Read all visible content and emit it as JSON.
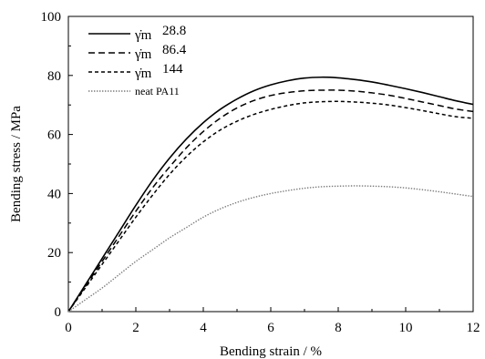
{
  "chart_data": {
    "type": "line",
    "xlabel": "Bending strain / %",
    "ylabel": "Bending stress / MPa",
    "xlim": [
      0,
      12
    ],
    "ylim": [
      0,
      100
    ],
    "x_ticks": [
      0,
      2,
      4,
      6,
      8,
      10,
      12
    ],
    "y_ticks": [
      0,
      20,
      40,
      60,
      80,
      100
    ],
    "grid": false,
    "legend_position": "top-left",
    "series": [
      {
        "name": "γ̇m 28.8",
        "symbol": "γ̇m",
        "value_label": "28.8",
        "color": "#000000",
        "dash": "solid",
        "x": [
          0,
          0.5,
          1,
          1.5,
          2,
          2.5,
          3,
          3.5,
          4,
          4.5,
          5,
          5.5,
          6,
          6.5,
          7,
          7.5,
          8,
          8.5,
          9,
          9.5,
          10,
          10.5,
          11,
          11.5,
          12
        ],
        "y": [
          0,
          9,
          18,
          27,
          36,
          44.5,
          52,
          58.5,
          64,
          68.5,
          72,
          74.8,
          76.8,
          78.2,
          79.1,
          79.4,
          79.2,
          78.6,
          77.8,
          76.7,
          75.5,
          74.2,
          72.8,
          71.4,
          70.2
        ]
      },
      {
        "name": "γ̇m 86.4",
        "symbol": "γ̇m",
        "value_label": "86.4",
        "color": "#000000",
        "dash": "long",
        "x": [
          0,
          0.5,
          1,
          1.5,
          2,
          2.5,
          3,
          3.5,
          4,
          4.5,
          5,
          5.5,
          6,
          6.5,
          7,
          7.5,
          8,
          8.5,
          9,
          9.5,
          10,
          10.5,
          11,
          11.5,
          12
        ],
        "y": [
          0,
          8.5,
          17,
          25.5,
          34,
          42,
          49,
          55.5,
          61,
          65.5,
          69,
          71.5,
          73.2,
          74.2,
          74.8,
          75.0,
          75.0,
          74.7,
          74.1,
          73.3,
          72.2,
          71.0,
          69.8,
          68.6,
          67.8
        ]
      },
      {
        "name": "γ̇m 144",
        "symbol": "γ̇m",
        "value_label": "144",
        "color": "#000000",
        "dash": "short",
        "x": [
          0,
          0.5,
          1,
          1.5,
          2,
          2.5,
          3,
          3.5,
          4,
          4.5,
          5,
          5.5,
          6,
          6.5,
          7,
          7.5,
          8,
          8.5,
          9,
          9.5,
          10,
          10.5,
          11,
          11.5,
          12
        ],
        "y": [
          0,
          8,
          16,
          24,
          32,
          39.5,
          46.5,
          52.5,
          57.5,
          61.5,
          64.5,
          66.8,
          68.5,
          69.8,
          70.7,
          71.1,
          71.2,
          71.0,
          70.6,
          70.0,
          69.1,
          68.1,
          67.0,
          66.0,
          65.5
        ]
      },
      {
        "name": "neat PA11",
        "symbol": "",
        "value_label": "neat PA11",
        "color": "#7a7a7a",
        "dash": "dotted",
        "x": [
          0,
          0.5,
          1,
          1.5,
          2,
          2.5,
          3,
          3.5,
          4,
          4.5,
          5,
          5.5,
          6,
          6.5,
          7,
          7.5,
          8,
          8.5,
          9,
          9.5,
          10,
          10.5,
          11,
          11.5,
          12
        ],
        "y": [
          0,
          4,
          8,
          12.5,
          17,
          21,
          25,
          28.5,
          32,
          34.8,
          37,
          38.7,
          40,
          41,
          41.8,
          42.3,
          42.5,
          42.6,
          42.5,
          42.3,
          41.9,
          41.3,
          40.6,
          39.8,
          39.0
        ]
      }
    ]
  }
}
